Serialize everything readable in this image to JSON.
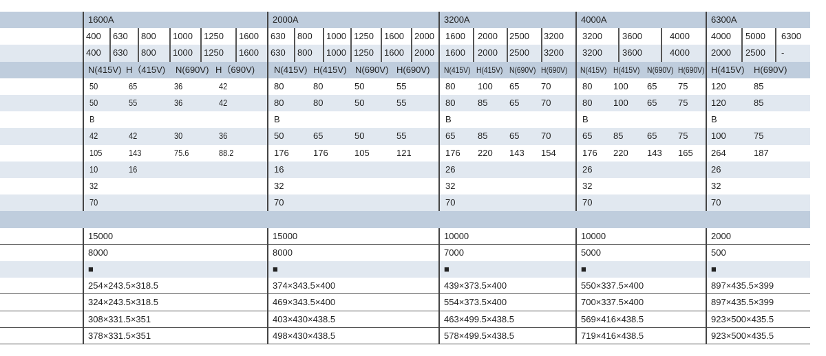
{
  "colors": {
    "header_blue": "#bfcddd",
    "row_light": "#e1e8f0",
    "divider": "#444444"
  },
  "groups": [
    {
      "title": "1600A",
      "row1": [
        "400",
        "630",
        "800",
        "1000",
        "1250",
        "1600"
      ],
      "row2": [
        "400",
        "630",
        "800",
        "1000",
        "1250",
        "1600"
      ],
      "ratings": [
        "N(415V)",
        "H（415V)",
        "N(690V)",
        "H（690V)"
      ],
      "rows": [
        [
          "50",
          "65",
          "36",
          "42"
        ],
        [
          "50",
          "55",
          "36",
          "42"
        ],
        [
          "B"
        ],
        [
          "42",
          "42",
          "30",
          "36"
        ],
        [
          "105",
          "143",
          "75.6",
          "88.2"
        ],
        [
          "10",
          "16"
        ],
        [
          "32"
        ],
        [
          "70"
        ]
      ],
      "bottom": [
        "15000",
        "8000",
        "■",
        "254×243.5×318.5",
        "324×243.5×318.5",
        "308×331.5×351",
        "378×331.5×351"
      ]
    },
    {
      "title": "2000A",
      "row1": [
        "630",
        "800",
        "1000",
        "1250",
        "1600",
        "2000"
      ],
      "row2": [
        "630",
        "800",
        "1000",
        "1250",
        "1600",
        "2000"
      ],
      "ratings": [
        "N(415V)",
        "H(415V)",
        "N(690V)",
        "H(690V)"
      ],
      "rows": [
        [
          "80",
          "80",
          "50",
          "55"
        ],
        [
          "80",
          "80",
          "50",
          "55"
        ],
        [
          "B"
        ],
        [
          "50",
          "65",
          "50",
          "55"
        ],
        [
          "176",
          "176",
          "105",
          "121"
        ],
        [
          "16"
        ],
        [
          "32"
        ],
        [
          "70"
        ]
      ],
      "bottom": [
        "15000",
        "8000",
        "■",
        "374×343.5×400",
        "469×343.5×400",
        "403×430×438.5",
        "498×430×438.5"
      ]
    },
    {
      "title": "3200A",
      "row1": [
        "1600",
        "2000",
        "2500",
        "3200"
      ],
      "row2": [
        "1600",
        "2000",
        "2500",
        "3200"
      ],
      "ratings": [
        "N(415V)",
        "H(415V)",
        "N(690V)",
        "H(690V)"
      ],
      "rows": [
        [
          "80",
          "100",
          "65",
          "70"
        ],
        [
          "80",
          "85",
          "65",
          "70"
        ],
        [
          "B"
        ],
        [
          "65",
          "85",
          "65",
          "70"
        ],
        [
          "176",
          "220",
          "143",
          "154"
        ],
        [
          "26"
        ],
        [
          "32"
        ],
        [
          "70"
        ]
      ],
      "bottom": [
        "10000",
        "7000",
        "■",
        "439×373.5×400",
        "554×373.5×400",
        "463×499.5×438.5",
        "578×499.5×438.5"
      ]
    },
    {
      "title": "4000A",
      "row1": [
        "3200",
        "3600",
        "4000"
      ],
      "row2": [
        "3200",
        "3600",
        "4000"
      ],
      "ratings": [
        "N(415V)",
        "H(415V)",
        "N(690V)",
        "H(690V)"
      ],
      "rows": [
        [
          "80",
          "100",
          "65",
          "75"
        ],
        [
          "80",
          "100",
          "65",
          "75"
        ],
        [
          "B"
        ],
        [
          "65",
          "85",
          "65",
          "75"
        ],
        [
          "176",
          "220",
          "143",
          "165"
        ],
        [
          "26"
        ],
        [
          "32"
        ],
        [
          "70"
        ]
      ],
      "bottom": [
        "10000",
        "5000",
        "■",
        "550×337.5×400",
        "700×337.5×400",
        "569×416×438.5",
        "719×416×438.5"
      ]
    },
    {
      "title": "6300A",
      "row1": [
        "4000",
        "5000",
        "6300"
      ],
      "row2": [
        "2000",
        "2500",
        "-"
      ],
      "ratings": [
        "H(415V)",
        "H(690V)"
      ],
      "rows": [
        [
          "120",
          "85"
        ],
        [
          "120",
          "85"
        ],
        [
          "B"
        ],
        [
          "100",
          "75"
        ],
        [
          "264",
          "187"
        ],
        [
          "26"
        ],
        [
          "32"
        ],
        [
          "70"
        ]
      ],
      "bottom": [
        "2000",
        "500",
        "■",
        "897×435.5×399",
        "897×435.5×399",
        "923×500×435.5",
        "923×500×435.5"
      ]
    }
  ]
}
